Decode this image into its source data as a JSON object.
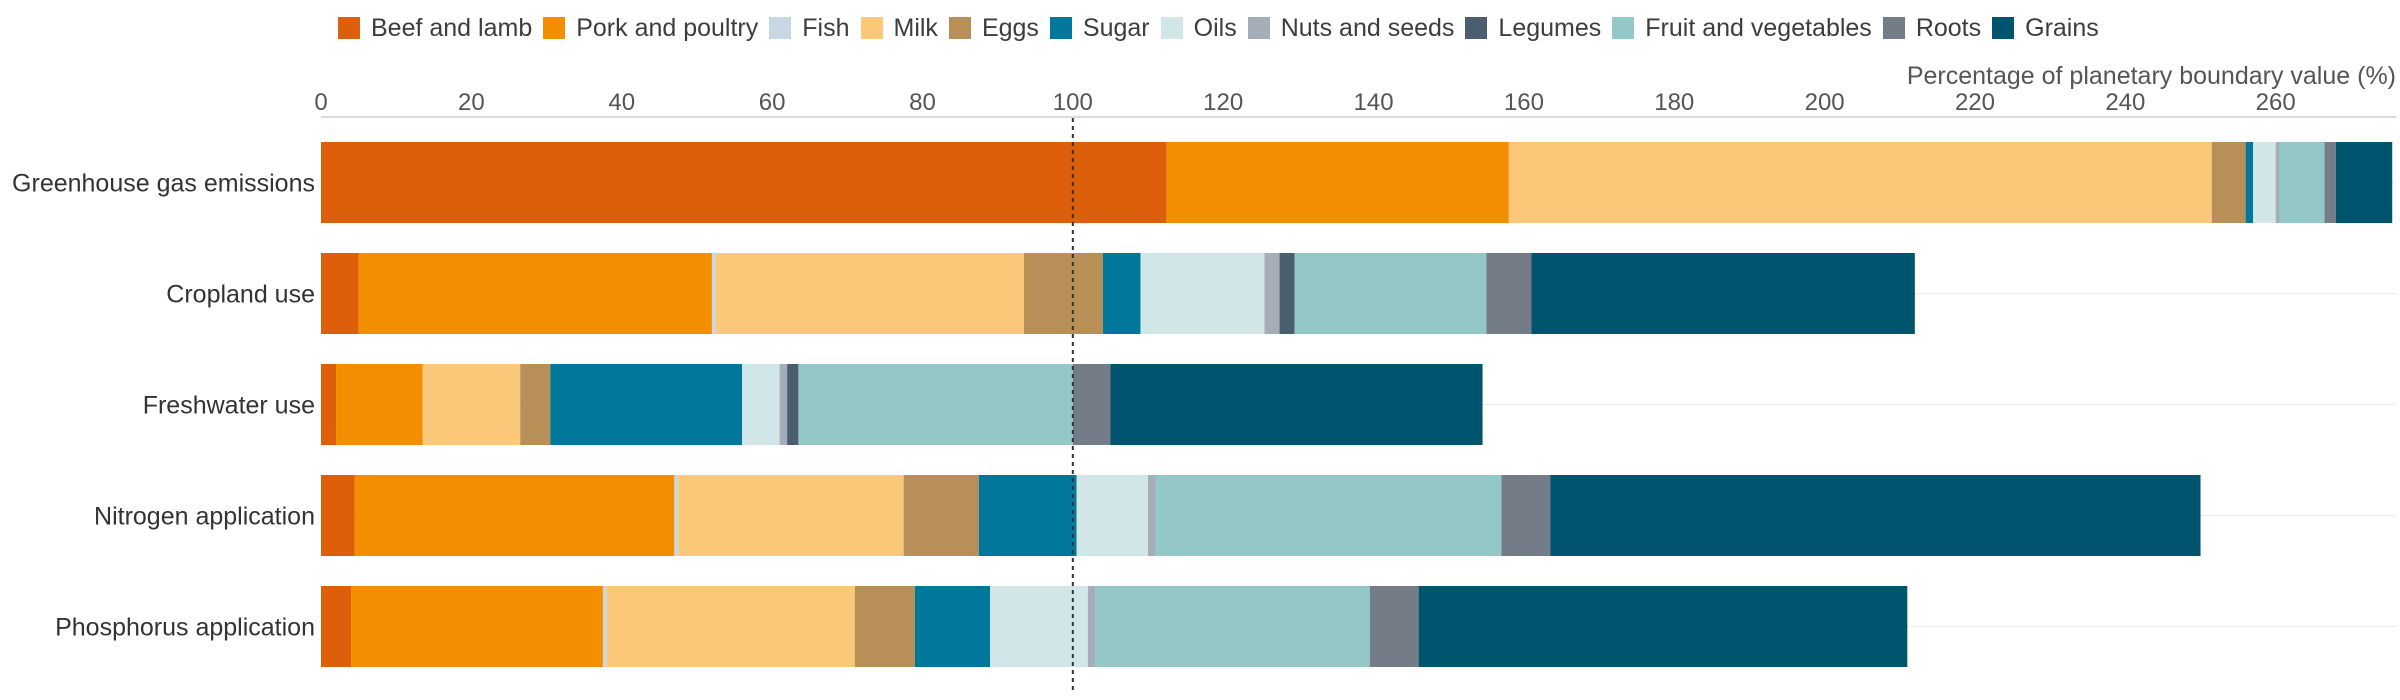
{
  "chart_data": {
    "type": "bar",
    "orientation": "horizontal",
    "stacked": true,
    "xlabel": "Percentage of planetary boundary value (%)",
    "xlim": [
      0,
      276
    ],
    "xticks": [
      0,
      20,
      40,
      60,
      80,
      100,
      120,
      140,
      160,
      180,
      200,
      220,
      240,
      260
    ],
    "reference_line": 100,
    "legend_position": "top",
    "grid": false,
    "categories": [
      "Greenhouse gas emissions",
      "Cropland use",
      "Freshwater use",
      "Nitrogen application",
      "Phosphorus application"
    ],
    "series": [
      {
        "name": "Beef and lamb",
        "color": "#dd5f0b",
        "values": [
          112.5,
          5,
          2,
          4.5,
          4
        ]
      },
      {
        "name": "Pork and poultry",
        "color": "#f28e00",
        "values": [
          45.5,
          47,
          11.5,
          42.5,
          33.5
        ]
      },
      {
        "name": "Fish",
        "color": "#c9d7e3",
        "values": [
          0,
          0.5,
          0,
          0.5,
          0.5
        ]
      },
      {
        "name": "Milk",
        "color": "#fbc87a",
        "values": [
          93.5,
          41,
          13,
          30,
          33
        ]
      },
      {
        "name": "Eggs",
        "color": "#b88f57",
        "values": [
          4.5,
          10.5,
          4,
          10,
          8
        ]
      },
      {
        "name": "Sugar",
        "color": "#00779b",
        "values": [
          1,
          5,
          25.5,
          13,
          10
        ]
      },
      {
        "name": "Oils",
        "color": "#d1e6e6",
        "values": [
          3,
          16.5,
          5,
          9.5,
          13
        ]
      },
      {
        "name": "Nuts and seeds",
        "color": "#a5adb8",
        "values": [
          0.5,
          2,
          1,
          1,
          1
        ]
      },
      {
        "name": "Legumes",
        "color": "#4a5e70",
        "values": [
          0,
          2,
          1.5,
          0,
          0
        ]
      },
      {
        "name": "Fruit and vegetables",
        "color": "#94c8c8",
        "values": [
          6,
          25.5,
          36.5,
          46,
          36.5
        ]
      },
      {
        "name": "Roots",
        "color": "#747c88",
        "values": [
          1.5,
          6,
          5,
          6.5,
          6.5
        ]
      },
      {
        "name": "Grains",
        "color": "#00546d",
        "values": [
          7.5,
          51,
          49.5,
          86.5,
          65
        ]
      }
    ]
  }
}
